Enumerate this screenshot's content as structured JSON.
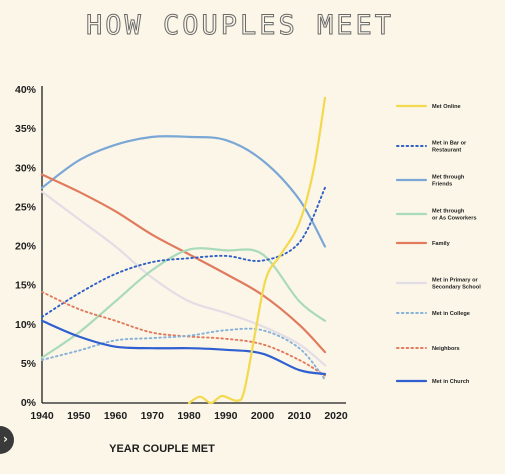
{
  "chart_data": {
    "type": "line",
    "title": "HOW COUPLES MEET",
    "xlabel": "YEAR COUPLE MET",
    "ylabel": "",
    "xlim": [
      1940,
      2020
    ],
    "ylim": [
      0,
      40
    ],
    "xticks": [
      "1940",
      "1950",
      "1960",
      "1970",
      "1980",
      "1990",
      "2000",
      "2010",
      "2020"
    ],
    "yticks": [
      "0%",
      "5%",
      "10%",
      "15%",
      "20%",
      "25%",
      "30%",
      "35%",
      "40%"
    ],
    "legend_position": "right",
    "grid": false,
    "x": [
      1940,
      1950,
      1960,
      1970,
      1980,
      1990,
      2000,
      2010,
      2017
    ],
    "series": [
      {
        "name": "Met Online",
        "color": "#f2d94e",
        "dash": "solid",
        "points": [
          [
            1980,
            0
          ],
          [
            1983,
            0.8
          ],
          [
            1986,
            0
          ],
          [
            1989,
            0.9
          ],
          [
            1993,
            0.3
          ],
          [
            1995,
            1.5
          ],
          [
            1998,
            9
          ],
          [
            2001,
            16
          ],
          [
            2005,
            19
          ],
          [
            2010,
            23
          ],
          [
            2014,
            30
          ],
          [
            2017,
            39
          ]
        ]
      },
      {
        "name": "Met in Bar or Restaurant",
        "color": "#2f5fc7",
        "dash": "dotted",
        "values": [
          11,
          14,
          16.5,
          18,
          18.5,
          18.8,
          18.2,
          20.5,
          27.5
        ]
      },
      {
        "name": "Met through Friends",
        "color": "#7ba7d6",
        "dash": "solid",
        "values": [
          27.5,
          31,
          33,
          34,
          34,
          33.6,
          31,
          26,
          20
        ]
      },
      {
        "name": "Met through or As Coworkers",
        "color": "#a9dab9",
        "dash": "solid",
        "values": [
          5.8,
          9,
          13,
          17,
          19.6,
          19.5,
          19,
          13,
          10.5
        ]
      },
      {
        "name": "Family",
        "color": "#e17b5e",
        "dash": "solid",
        "values": [
          29.2,
          27,
          24.5,
          21.5,
          19,
          16.5,
          13.8,
          10,
          6.5
        ]
      },
      {
        "name": "Met in Primary or Secondary School",
        "color": "#e3dde6",
        "dash": "solid",
        "values": [
          27,
          23.5,
          20,
          16,
          13,
          11.5,
          9.8,
          7.5,
          4.8
        ]
      },
      {
        "name": "Met in College",
        "color": "#86b1d9",
        "dash": "dotted",
        "values": [
          5.5,
          6.7,
          8,
          8.3,
          8.6,
          9.3,
          9.3,
          7,
          3
        ]
      },
      {
        "name": "Neighbors",
        "color": "#e17b5e",
        "dash": "dotted",
        "values": [
          14.2,
          12,
          10.5,
          9,
          8.5,
          8.2,
          7.5,
          5.5,
          3.5
        ]
      },
      {
        "name": "Met in Church",
        "color": "#2f5fd0",
        "dash": "solid",
        "values": [
          10.5,
          8.5,
          7.2,
          7,
          7,
          6.8,
          6.3,
          4.2,
          3.7
        ]
      }
    ]
  },
  "legend": [
    {
      "lines": [
        "Met Online"
      ]
    },
    {
      "lines": [
        "Met in Bar or",
        "Restaurant"
      ]
    },
    {
      "lines": [
        "Met through",
        "Friends"
      ]
    },
    {
      "lines": [
        "Met through",
        "or As Coworkers"
      ]
    },
    {
      "lines": [
        "Family"
      ]
    },
    {
      "lines": [
        "Met in Primary or",
        "Secondary School"
      ]
    },
    {
      "lines": [
        "Met in College"
      ]
    },
    {
      "lines": [
        "Neighbors"
      ]
    },
    {
      "lines": [
        "Met in Church"
      ]
    }
  ]
}
